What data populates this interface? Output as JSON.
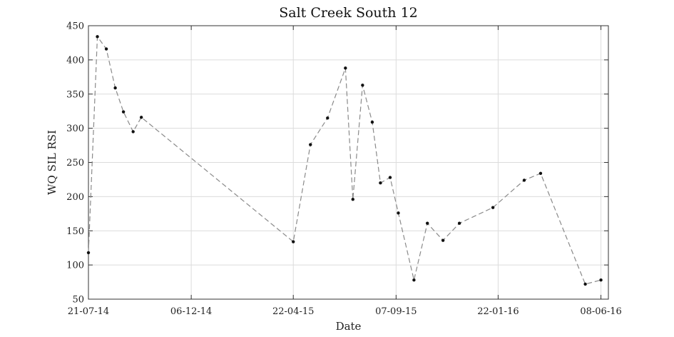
{
  "chart_data": {
    "type": "line",
    "title": "Salt Creek South 12",
    "xlabel": "Date",
    "ylabel": "WQ SIL RSI",
    "x_type": "date",
    "xlim": [
      "2014-07-21",
      "2016-06-18"
    ],
    "ylim": [
      50,
      450
    ],
    "grid": true,
    "y_ticks": [
      50,
      100,
      150,
      200,
      250,
      300,
      350,
      400,
      450
    ],
    "x_ticks": [
      {
        "date": "2014-07-21",
        "label": "21-07-14"
      },
      {
        "date": "2014-12-06",
        "label": "06-12-14"
      },
      {
        "date": "2015-04-22",
        "label": "22-04-15"
      },
      {
        "date": "2015-09-07",
        "label": "07-09-15"
      },
      {
        "date": "2016-01-22",
        "label": "22-01-16"
      },
      {
        "date": "2016-06-08",
        "label": "08-06-16"
      }
    ],
    "series": [
      {
        "marker_color": "#111111",
        "line_color": "#8a8a8a",
        "line_style": "dashed",
        "points": [
          {
            "x": "2014-07-21",
            "y": 118
          },
          {
            "x": "2014-08-02",
            "y": 434
          },
          {
            "x": "2014-08-14",
            "y": 416
          },
          {
            "x": "2014-08-26",
            "y": 359
          },
          {
            "x": "2014-09-06",
            "y": 324
          },
          {
            "x": "2014-09-19",
            "y": 295
          },
          {
            "x": "2014-09-30",
            "y": 316
          },
          {
            "x": "2015-04-22",
            "y": 134
          },
          {
            "x": "2015-05-15",
            "y": 276
          },
          {
            "x": "2015-06-07",
            "y": 315
          },
          {
            "x": "2015-07-01",
            "y": 388
          },
          {
            "x": "2015-07-11",
            "y": 196
          },
          {
            "x": "2015-07-24",
            "y": 363
          },
          {
            "x": "2015-08-06",
            "y": 309
          },
          {
            "x": "2015-08-17",
            "y": 220
          },
          {
            "x": "2015-08-30",
            "y": 228
          },
          {
            "x": "2015-09-10",
            "y": 176
          },
          {
            "x": "2015-10-01",
            "y": 78
          },
          {
            "x": "2015-10-19",
            "y": 161
          },
          {
            "x": "2015-11-09",
            "y": 136
          },
          {
            "x": "2015-12-01",
            "y": 161
          },
          {
            "x": "2016-01-15",
            "y": 184
          },
          {
            "x": "2016-02-26",
            "y": 224
          },
          {
            "x": "2016-03-19",
            "y": 234
          },
          {
            "x": "2016-05-18",
            "y": 72
          },
          {
            "x": "2016-06-08",
            "y": 78
          }
        ]
      }
    ]
  }
}
